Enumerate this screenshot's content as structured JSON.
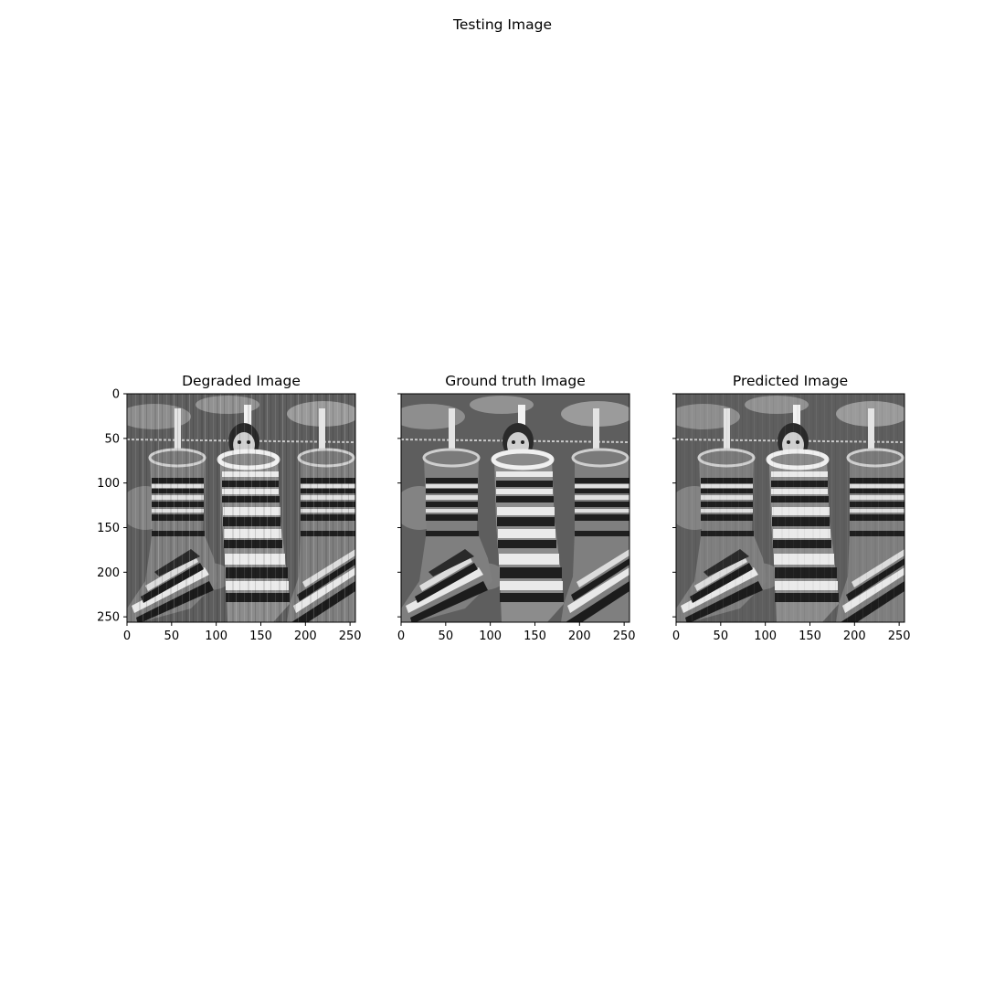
{
  "figure": {
    "suptitle": "Testing Image",
    "panels": [
      {
        "title": "Degraded Image",
        "image": "grayscale photo: three striped socks hanging on a clothesline with clothespins, a young girl's face peeking out of the middle sock, cloudy sky background; vertical streak artifacts",
        "show_y_tick_labels": true,
        "degraded": true
      },
      {
        "title": "Ground truth Image",
        "image": "clean grayscale photo: three striped socks on a clothesline, girl's face peeking from middle sock, cloudy sky",
        "show_y_tick_labels": false,
        "degraded": false
      },
      {
        "title": "Predicted Image",
        "image": "restored grayscale photo: three striped socks on a clothesline, girl's face peeking from middle sock, cloudy sky; faint residual streaks",
        "show_y_tick_labels": false,
        "degraded": false
      }
    ],
    "x_ticks": [
      "0",
      "50",
      "100",
      "150",
      "200",
      "250"
    ],
    "y_ticks": [
      "0",
      "50",
      "100",
      "150",
      "200",
      "250"
    ],
    "axis_range": [
      0,
      256
    ],
    "colors": {
      "sky": "#5a5a5a",
      "sock_light": "#d8d8d8",
      "sock_dark": "#1e1e1e",
      "sock_mid": "#8a8a8a"
    }
  }
}
